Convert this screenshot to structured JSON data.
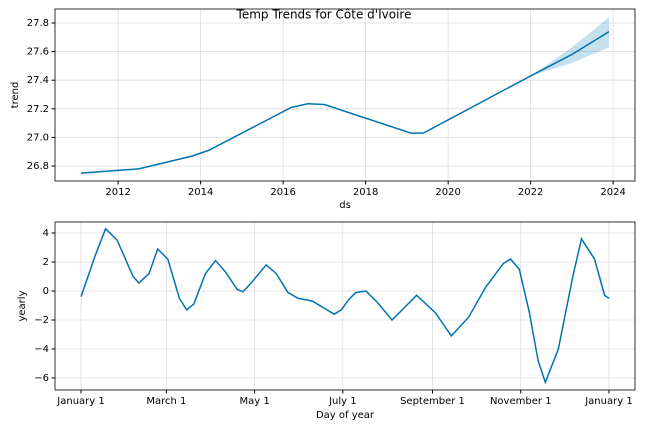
{
  "chart_data": [
    {
      "type": "line",
      "title": "Temp Trends for Côte d'Ivoire",
      "xlabel": "ds",
      "ylabel": "trend",
      "x": [
        2011.1,
        2012.5,
        2013.8,
        2014.2,
        2016.2,
        2016.6,
        2017.0,
        2019.1,
        2019.4,
        2022.0,
        2023.0,
        2023.9
      ],
      "series": [
        {
          "color": "#0072B2",
          "values": [
            26.75,
            26.78,
            26.87,
            26.91,
            27.21,
            27.235,
            27.23,
            27.03,
            27.03,
            27.43,
            27.58,
            27.74
          ],
          "lower": [
            null,
            null,
            null,
            null,
            null,
            null,
            null,
            null,
            null,
            27.43,
            27.52,
            27.63
          ],
          "upper": [
            null,
            null,
            null,
            null,
            null,
            null,
            null,
            null,
            null,
            27.43,
            27.63,
            27.84
          ]
        }
      ],
      "xlim": [
        2010.47,
        2024.53
      ],
      "ylim": [
        26.695,
        27.898
      ],
      "xticks": [
        2012,
        2014,
        2016,
        2018,
        2020,
        2022,
        2024
      ],
      "yticks": [
        {
          "value": 26.8,
          "label": "26.8"
        },
        {
          "value": 27.0,
          "label": "27.0"
        },
        {
          "value": 27.2,
          "label": "27.2"
        },
        {
          "value": 27.4,
          "label": "27.4"
        },
        {
          "value": 27.6,
          "label": "27.6"
        },
        {
          "value": 27.8,
          "label": "27.8"
        }
      ],
      "grid": true
    },
    {
      "type": "line",
      "xlabel": "Day of year",
      "ylabel": "yearly",
      "x": [
        0,
        10,
        17,
        25,
        36,
        40,
        47,
        53,
        60,
        68,
        73,
        78,
        86,
        93,
        100,
        108,
        112,
        118,
        128,
        135,
        143,
        150,
        160,
        170,
        175,
        180,
        185,
        190,
        197,
        205,
        215,
        225,
        232,
        245,
        256,
        268,
        280,
        292,
        297,
        303,
        310,
        316,
        321,
        330,
        340,
        346,
        355,
        362,
        365
      ],
      "series": [
        {
          "color": "#0072B2",
          "values": [
            -0.4,
            2.5,
            4.3,
            3.5,
            1.0,
            0.55,
            1.2,
            2.9,
            2.2,
            -0.5,
            -1.3,
            -0.9,
            1.2,
            2.1,
            1.3,
            0.1,
            -0.05,
            0.6,
            1.8,
            1.2,
            -0.1,
            -0.5,
            -0.7,
            -1.3,
            -1.6,
            -1.3,
            -0.6,
            -0.1,
            0.0,
            -0.8,
            -2.0,
            -1.0,
            -0.3,
            -1.5,
            -3.1,
            -1.8,
            0.3,
            1.9,
            2.2,
            1.5,
            -1.5,
            -4.8,
            -6.3,
            -4.0,
            1.0,
            3.6,
            2.2,
            -0.3,
            -0.5
          ]
        }
      ],
      "xlim": [
        -18,
        383
      ],
      "ylim": [
        -6.83,
        4.76
      ],
      "xticks": [
        {
          "value": 0,
          "label": "January 1"
        },
        {
          "value": 59,
          "label": "March 1"
        },
        {
          "value": 120,
          "label": "May 1"
        },
        {
          "value": 181,
          "label": "July 1"
        },
        {
          "value": 243,
          "label": "September 1"
        },
        {
          "value": 304,
          "label": "November 1"
        },
        {
          "value": 365,
          "label": "January 1"
        }
      ],
      "yticks": [
        {
          "value": -6,
          "label": "−6"
        },
        {
          "value": -4,
          "label": "−4"
        },
        {
          "value": -2,
          "label": "−2"
        },
        0,
        2,
        4
      ],
      "grid": true
    }
  ]
}
